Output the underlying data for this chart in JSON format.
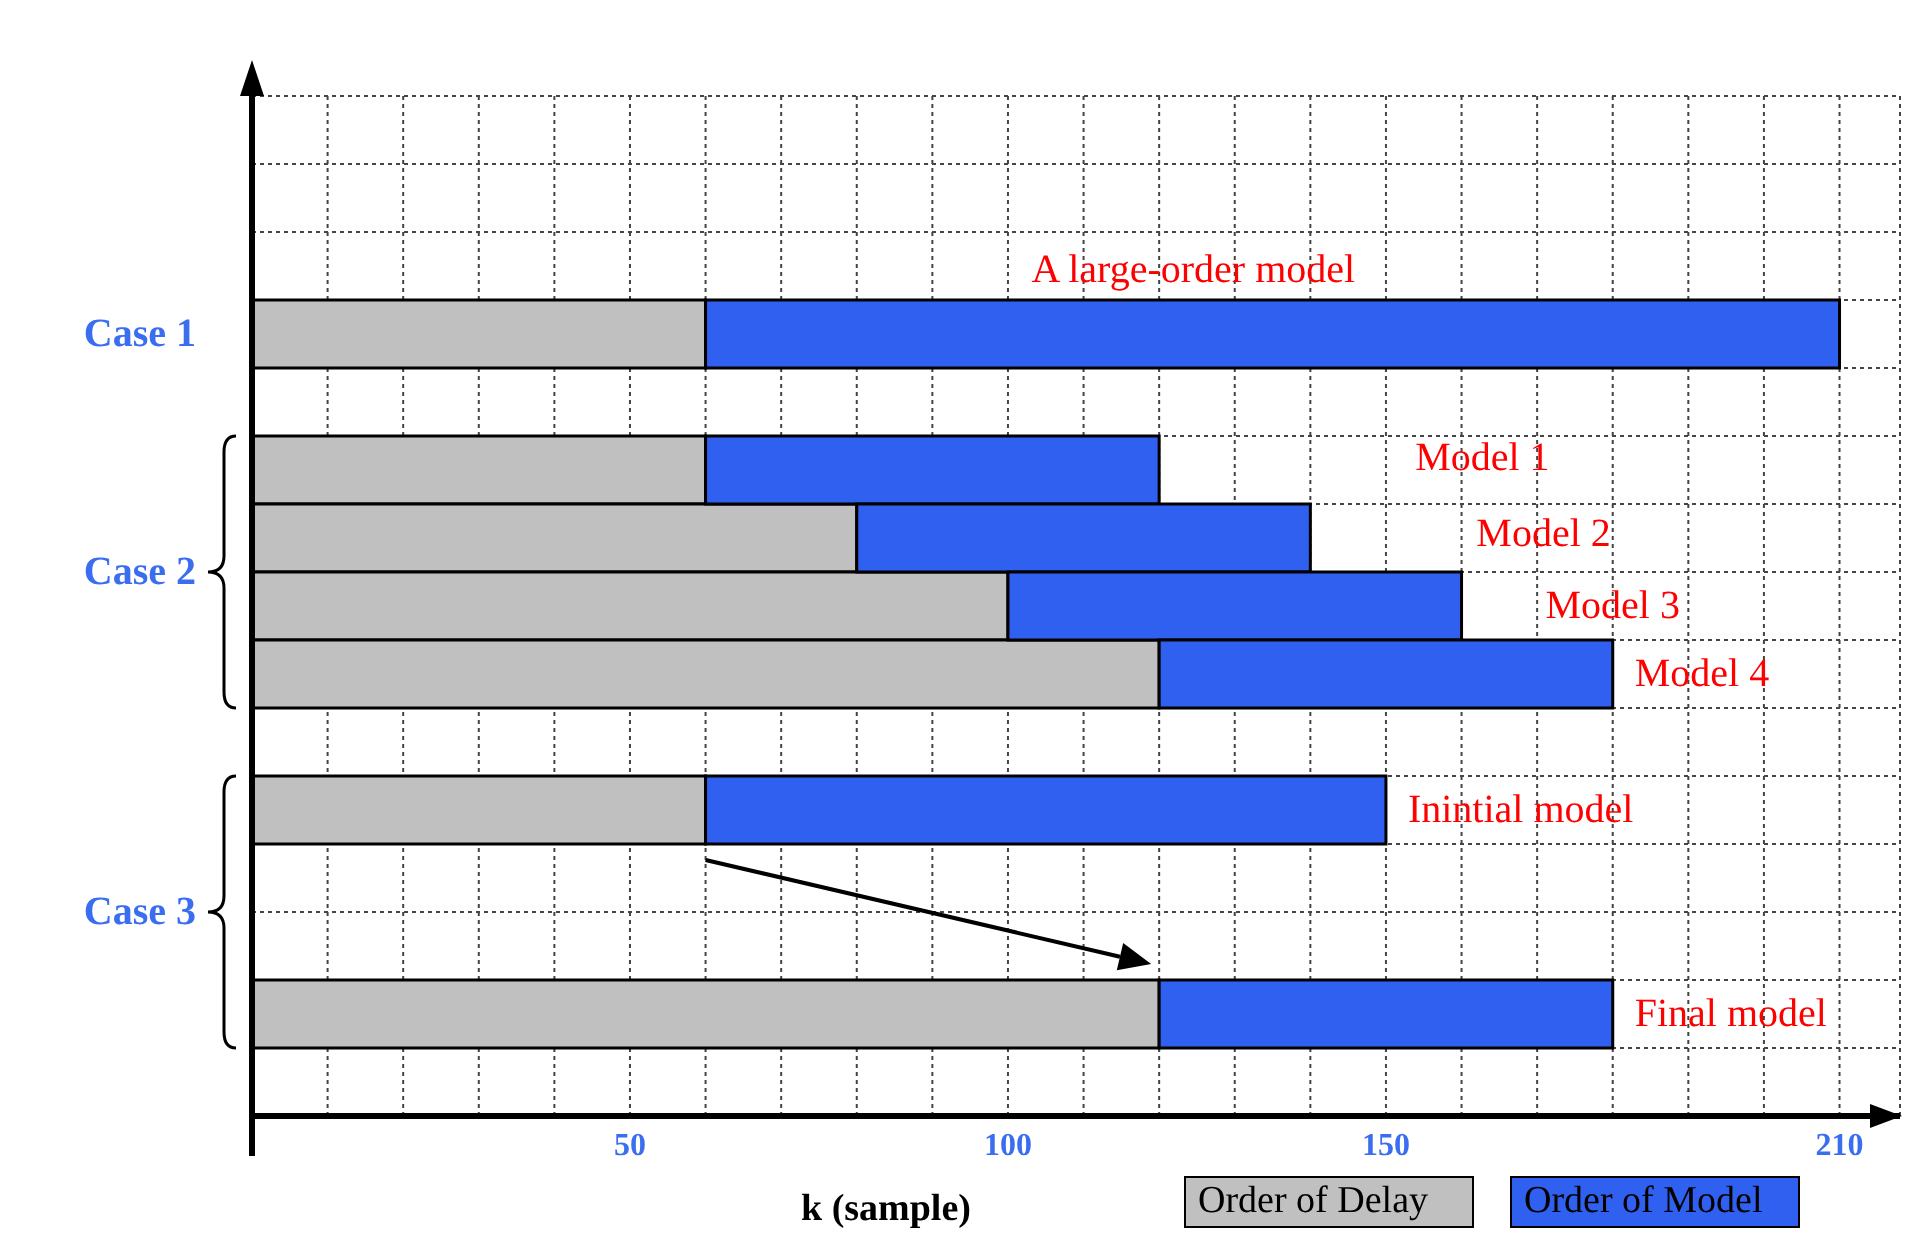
{
  "chart_data": {
    "type": "bar",
    "orientation": "horizontal",
    "stacked": true,
    "xlabel": "k (sample)",
    "categories": [
      null,
      null,
      null,
      null,
      null,
      null,
      null,
      null,
      null,
      null,
      null,
      null,
      null,
      null,
      null
    ],
    "series": [
      {
        "name": "Order of Delay",
        "color": "#c0c0c0",
        "values": [
          null,
          null,
          null,
          60,
          null,
          60,
          80,
          100,
          120,
          null,
          60,
          null,
          null,
          120,
          null
        ]
      },
      {
        "name": "Order of Model",
        "color": "#3060f0",
        "values": [
          null,
          null,
          null,
          150,
          null,
          60,
          60,
          60,
          60,
          null,
          90,
          null,
          null,
          60,
          null
        ]
      }
    ],
    "xlim": [
      0,
      218
    ],
    "xticks": [
      {
        "value": 10,
        "label": null
      },
      {
        "value": 20,
        "label": null
      },
      {
        "value": 30,
        "label": null
      },
      {
        "value": 40,
        "label": null
      },
      50,
      {
        "value": 60,
        "label": null
      },
      {
        "value": 70,
        "label": null
      },
      {
        "value": 80,
        "label": null
      },
      {
        "value": 90,
        "label": null
      },
      100,
      {
        "value": 110,
        "label": null
      },
      {
        "value": 120,
        "label": null
      },
      {
        "value": 130,
        "label": null
      },
      {
        "value": 140,
        "label": null
      },
      150,
      {
        "value": 160,
        "label": null
      },
      {
        "value": 170,
        "label": null
      },
      {
        "value": 180,
        "label": null
      },
      {
        "value": 190,
        "label": null
      },
      {
        "value": 200,
        "label": null
      },
      210
    ],
    "annotations": [
      "A large-order model",
      "Model 1",
      "Model 2",
      "Model 3",
      "Model 4",
      "Inintial model",
      "Final model",
      "Case 1",
      "Case 2",
      "Case 3"
    ],
    "grid": true,
    "legend": "bottom right"
  }
}
